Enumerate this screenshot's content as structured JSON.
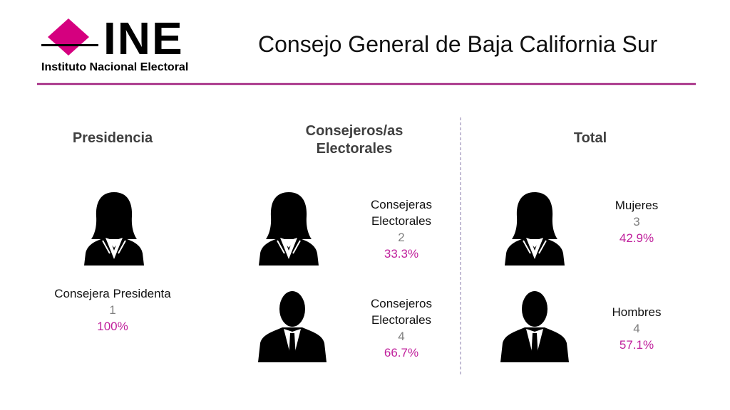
{
  "logo": {
    "mark": "INE",
    "name": "Instituto Nacional Electoral"
  },
  "title": "Consejo General de Baja California Sur",
  "sections": [
    {
      "heading": "Presidencia",
      "groups": [
        {
          "label": "Consejera Presidenta",
          "count": 1,
          "percent": "100%"
        }
      ]
    },
    {
      "heading": "Consejeros/as Electorales",
      "groups": [
        {
          "label": "Consejeras Electorales",
          "count": 2,
          "percent": "33.3%"
        },
        {
          "label": "Consejeros Electorales",
          "count": 4,
          "percent": "66.7%"
        }
      ]
    },
    {
      "heading": "Total",
      "groups": [
        {
          "label": "Mujeres",
          "count": 3,
          "percent": "42.9%"
        },
        {
          "label": "Hombres",
          "count": 4,
          "percent": "57.1%"
        }
      ]
    }
  ]
}
